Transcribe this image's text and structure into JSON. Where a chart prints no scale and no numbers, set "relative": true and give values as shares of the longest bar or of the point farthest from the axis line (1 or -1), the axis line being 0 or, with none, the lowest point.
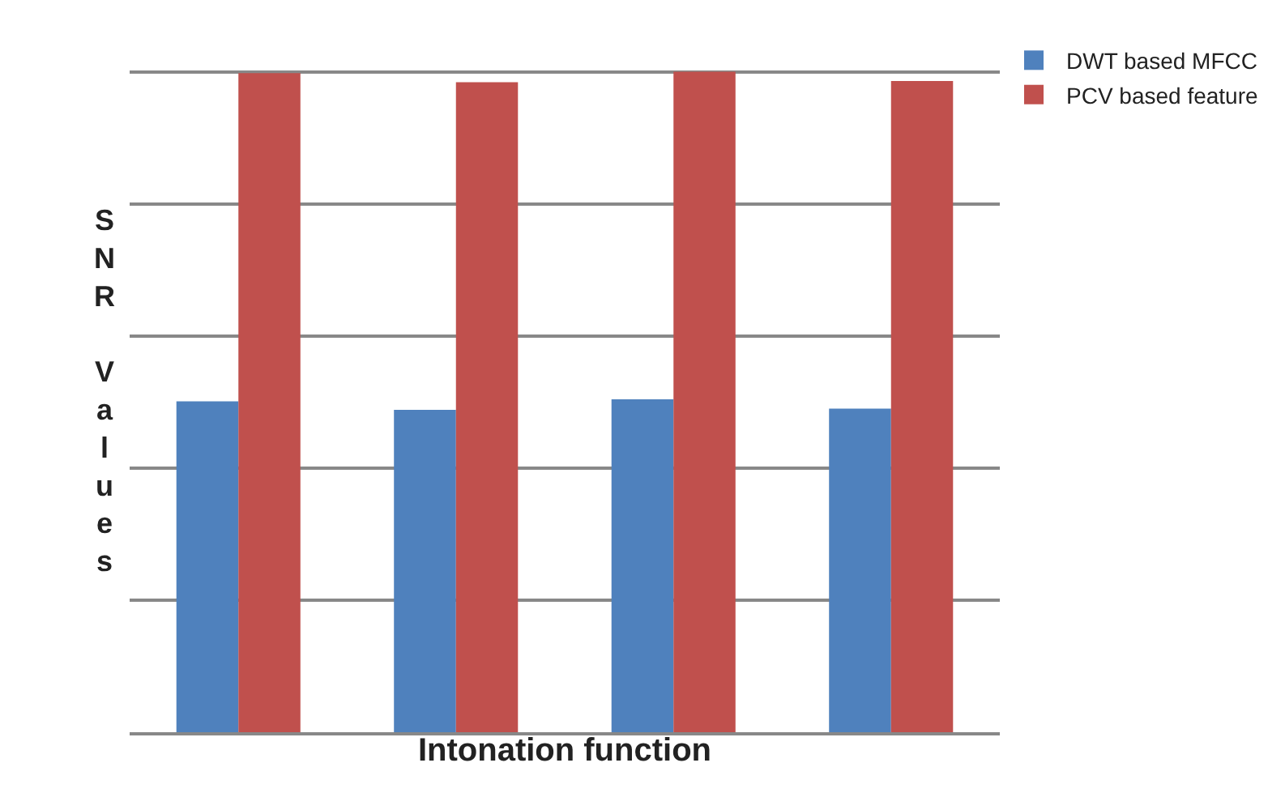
{
  "chart_data": {
    "type": "bar",
    "relative": true,
    "xlabel": "Intonation function",
    "ylabel": "SNR Values",
    "categories": [
      null,
      null,
      null,
      null
    ],
    "series": [
      {
        "name": "DWT based MFCC",
        "color": "#4f81bd",
        "values": [
          0.501,
          0.488,
          0.504,
          0.49
        ]
      },
      {
        "name": "PCV based feature",
        "color": "#c0504d",
        "values": [
          0.998,
          0.984,
          1.0,
          0.986
        ]
      }
    ],
    "grid": "y",
    "legend": "top right"
  }
}
